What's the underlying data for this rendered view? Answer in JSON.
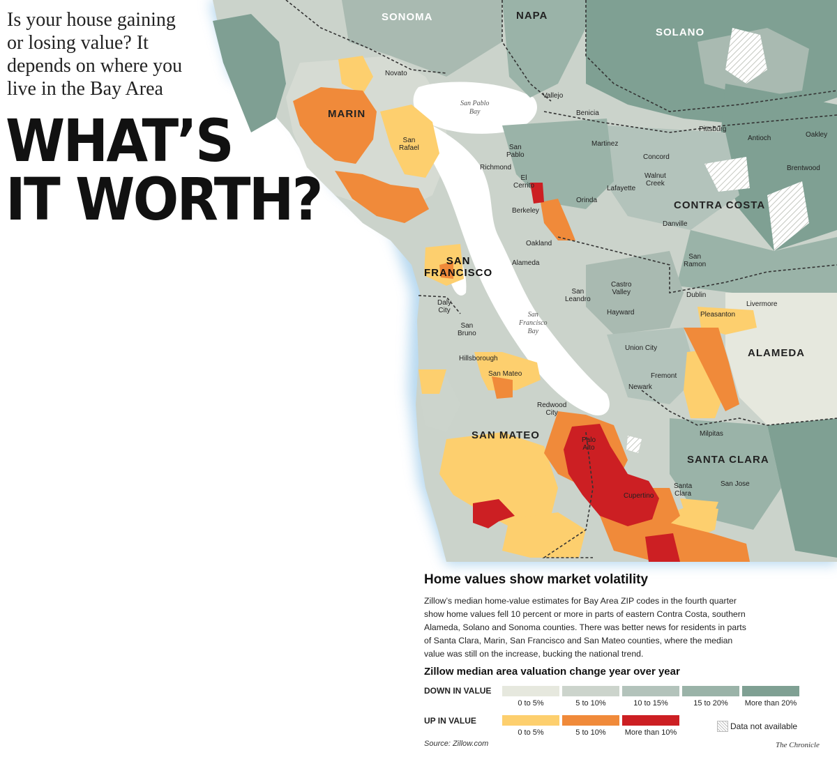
{
  "intro": {
    "lines": [
      "Is your house gaining",
      "or losing value? It",
      "depends on where you",
      "live in the Bay Area"
    ]
  },
  "headline": {
    "line1": "WHAT’S",
    "line2": "IT WORTH?"
  },
  "counties": {
    "sonoma": "SONOMA",
    "napa": "NAPA",
    "solano": "SOLANO",
    "marin": "MARIN",
    "contra_costa": "CONTRA COSTA",
    "sf_line1": "SAN",
    "sf_line2": "FRANCISCO",
    "alameda": "ALAMEDA",
    "san_mateo": "SAN MATEO",
    "santa_clara": "SANTA CLARA"
  },
  "cities": {
    "novato": "Novato",
    "vallejo": "Vallejo",
    "benicia": "Benicia",
    "pittsburg": "Pittsburg",
    "antioch": "Antioch",
    "oakley": "Oakley",
    "brentwood": "Brentwood",
    "martinez": "Martinez",
    "concord": "Concord",
    "walnut_creek_1": "Walnut",
    "walnut_creek_2": "Creek",
    "lafayette": "Lafayette",
    "orinda": "Orinda",
    "danville": "Danville",
    "san_ramon_1": "San",
    "san_ramon_2": "Ramon",
    "san_pablo_1": "San",
    "san_pablo_2": "Pablo",
    "richmond": "Richmond",
    "el_cerrito_1": "El",
    "el_cerrito_2": "Cerrito",
    "berkeley": "Berkeley",
    "oakland": "Oakland",
    "alameda_city": "Alameda",
    "san_rafael_1": "San",
    "san_rafael_2": "Rafael",
    "castro_valley_1": "Castro",
    "castro_valley_2": "Valley",
    "san_leandro_1": "San",
    "san_leandro_2": "Leandro",
    "hayward": "Hayward",
    "dublin": "Dublin",
    "livermore": "Livermore",
    "pleasanton": "Pleasanton",
    "union_city": "Union City",
    "fremont": "Fremont",
    "newark": "Newark",
    "daly_city_1": "Daly",
    "daly_city_2": "City",
    "san_bruno_1": "San",
    "san_bruno_2": "Bruno",
    "hillsborough": "Hillsborough",
    "san_mateo_city": "San Mateo",
    "redwood_city_1": "Redwood",
    "redwood_city_2": "City",
    "palo_alto_1": "Palo",
    "palo_alto_2": "Alto",
    "milpitas": "Milpitas",
    "santa_clara_city_1": "Santa",
    "santa_clara_city_2": "Clara",
    "san_jose": "San Jose",
    "cupertino": "Cupertino"
  },
  "water": {
    "san_pablo_bay_1": "San Pablo",
    "san_pablo_bay_2": "Bay",
    "sf_bay_1": "San",
    "sf_bay_2": "Francisco",
    "sf_bay_3": "Bay"
  },
  "info": {
    "title": "Home values show market volatility",
    "body_lines": [
      "Zillow’s median home-value estimates for Bay Area ZIP codes in the fourth quarter",
      "show home values fell 10 percent or more in parts of eastern Contra Costa, southern",
      "Alameda, Solano and Sonoma counties. There was better news for residents in parts",
      "of Santa Clara, Marin, San Francisco and San Mateo counties, where the median",
      "value was still on the increase, bucking the national trend."
    ]
  },
  "legend": {
    "title": "Zillow median area valuation change year over year",
    "down_label": "DOWN IN VALUE",
    "up_label": "UP IN VALUE",
    "down": [
      {
        "label": "0 to 5%",
        "color": "#e6e8de"
      },
      {
        "label": "5 to 10%",
        "color": "#ccd4cc"
      },
      {
        "label": "10 to 15%",
        "color": "#b3c3bb"
      },
      {
        "label": "15 to 20%",
        "color": "#9ab3a8"
      },
      {
        "label": "More than 20%",
        "color": "#7fa093"
      }
    ],
    "up": [
      {
        "label": "0 to 5%",
        "color": "#fdcf6e"
      },
      {
        "label": "5 to 10%",
        "color": "#f08a3a"
      },
      {
        "label": "More than 10%",
        "color": "#cc1f23"
      }
    ],
    "na_label": "Data not available"
  },
  "source": "Source: Zillow.com",
  "credit": "The Chronicle"
}
